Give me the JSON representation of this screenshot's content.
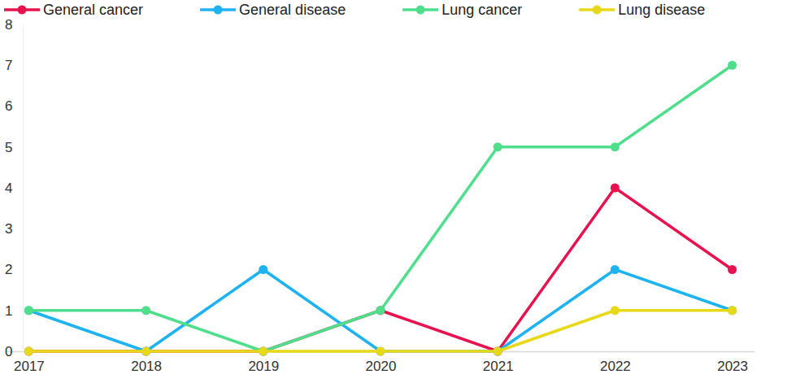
{
  "chart_data": {
    "type": "line",
    "categories": [
      "2017",
      "2018",
      "2019",
      "2020",
      "2021",
      "2022",
      "2023"
    ],
    "series": [
      {
        "name": "General cancer",
        "color": "#e8124f",
        "values": [
          0,
          0,
          0,
          1,
          0,
          4,
          2
        ]
      },
      {
        "name": "General disease",
        "color": "#1eb2f0",
        "values": [
          1,
          0,
          2,
          0,
          0,
          2,
          1
        ]
      },
      {
        "name": "Lung cancer",
        "color": "#4fde8c",
        "values": [
          1,
          1,
          0,
          1,
          5,
          5,
          7
        ]
      },
      {
        "name": "Lung disease",
        "color": "#e8d81a",
        "values": [
          0,
          0,
          0,
          0,
          0,
          1,
          1
        ]
      }
    ],
    "ylim": [
      0,
      8
    ],
    "yticks": [
      0,
      1,
      2,
      3,
      4,
      5,
      6,
      7,
      8
    ],
    "grid": false,
    "legend": "top",
    "marker": "circle"
  }
}
